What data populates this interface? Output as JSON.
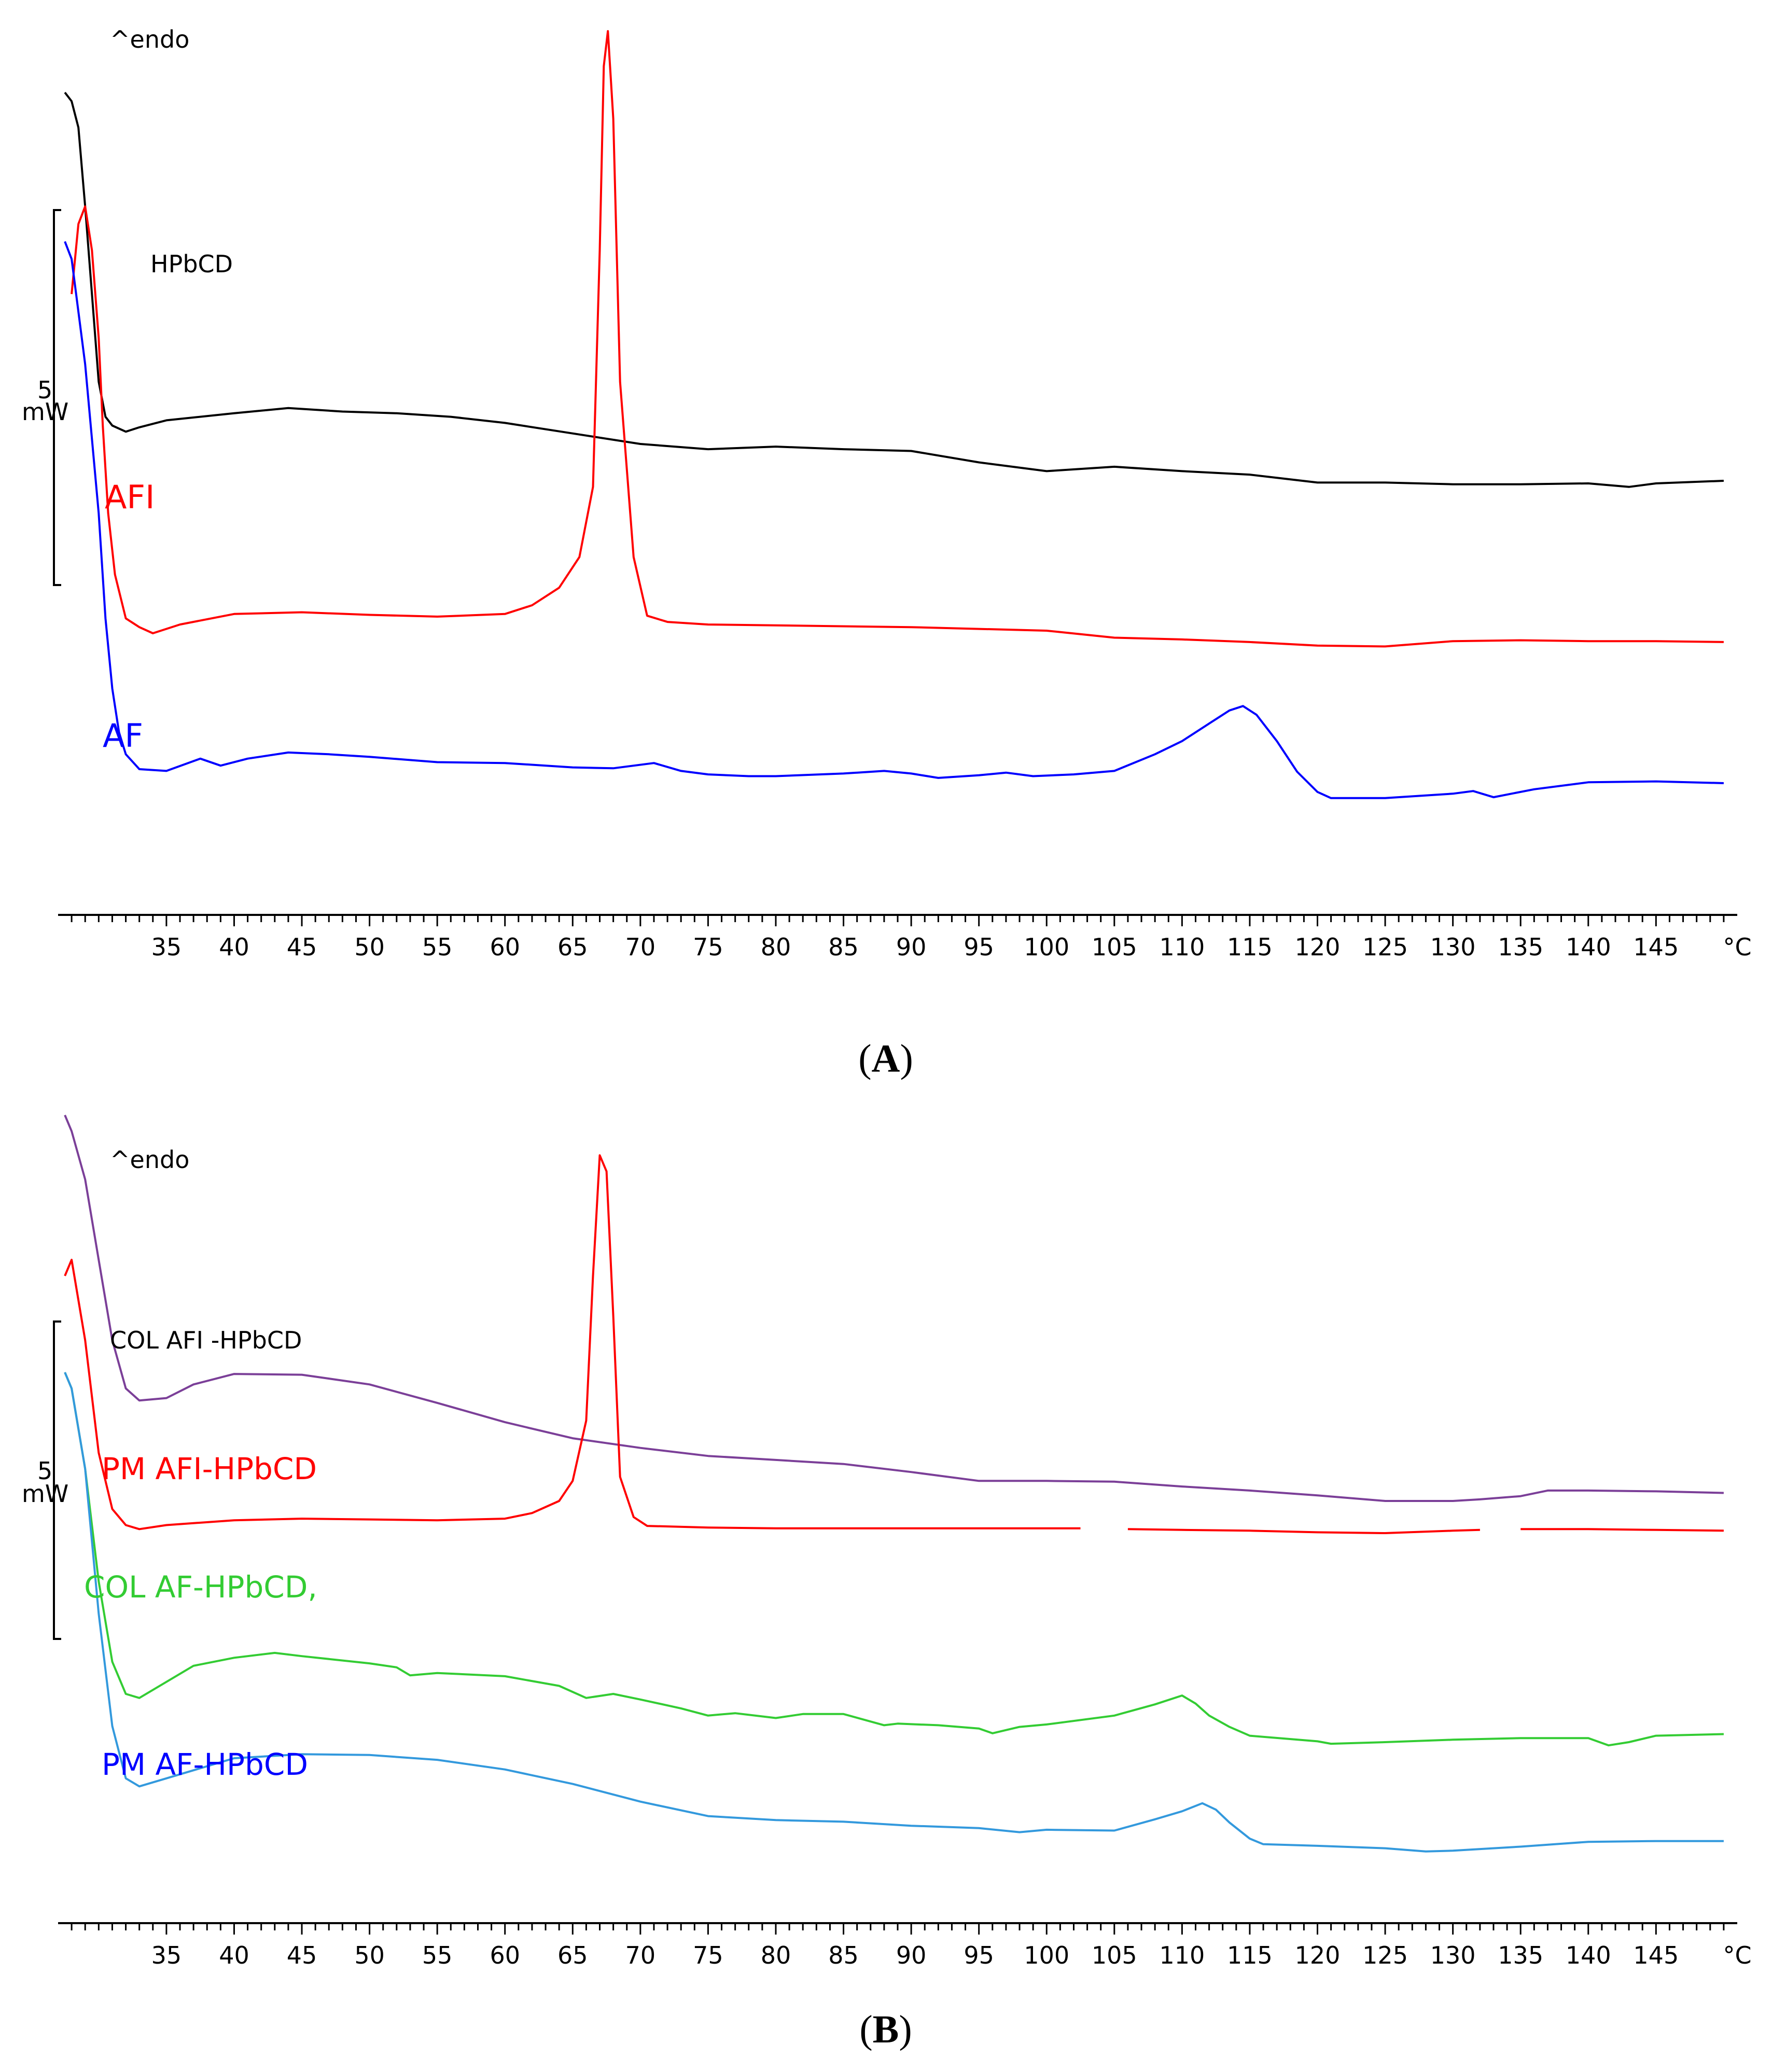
{
  "chart_data": [
    {
      "panel": "A",
      "type": "line",
      "title": "",
      "panel_label": "A",
      "panel_label_bold": "A",
      "endo_label": "^endo",
      "scale_value": "5",
      "scale_unit": "mW",
      "xlabel": "°C",
      "ylabel": "",
      "xlim": [
        27,
        151
      ],
      "ylim": [
        0,
        100
      ],
      "x_ticks": [
        35,
        40,
        45,
        50,
        55,
        60,
        65,
        70,
        75,
        80,
        85,
        90,
        95,
        100,
        105,
        110,
        115,
        120,
        125,
        130,
        135,
        140,
        145
      ],
      "series": [
        {
          "name": "HPbCD",
          "color": "#000000",
          "label_size": "small",
          "x": [
            27.5,
            28.0,
            28.5,
            29.0,
            29.5,
            30.0,
            30.5,
            31.0,
            32.0,
            33.0,
            35.0,
            40.0,
            44.0,
            48.0,
            52.0,
            56.0,
            60.0,
            65.0,
            70.0,
            75.0,
            80.0,
            85.0,
            90.0,
            95.0,
            100.0,
            105.0,
            110.0,
            115.0,
            120.0,
            125.0,
            130.0,
            135.0,
            140.0,
            143.0,
            145.0,
            150.0
          ],
          "y": [
            93,
            92,
            89,
            80,
            70,
            60,
            56,
            55,
            54.3,
            54.8,
            55.6,
            56.4,
            57.0,
            56.6,
            56.4,
            56.0,
            55.3,
            54.1,
            52.9,
            52.3,
            52.6,
            52.3,
            52.1,
            50.8,
            49.8,
            50.3,
            49.8,
            49.4,
            48.5,
            48.5,
            48.3,
            48.3,
            48.4,
            48.0,
            48.4,
            48.7
          ]
        },
        {
          "name": "AFI",
          "color": "#ff0000",
          "label_size": "large",
          "x": [
            28.0,
            28.5,
            29.0,
            29.5,
            30.0,
            30.3,
            30.7,
            31.2,
            32.0,
            33.0,
            34.0,
            36.0,
            40.0,
            45.0,
            50.0,
            55.0,
            60.0,
            62.0,
            64.0,
            65.5,
            66.5,
            67.0,
            67.3,
            67.6,
            68.0,
            68.5,
            69.5,
            70.5,
            72.0,
            75.0,
            80.0,
            90.0,
            100.0,
            105.0,
            110.0,
            115.0,
            120.0,
            125.0,
            130.0,
            135.0,
            140.0,
            145.0,
            150.0
          ],
          "y": [
            70,
            78,
            80,
            75,
            65,
            55,
            45,
            38,
            33,
            32.0,
            31.3,
            32.3,
            33.5,
            33.7,
            33.4,
            33.2,
            33.5,
            34.5,
            36.5,
            40,
            48,
            75,
            96,
            100,
            90,
            60,
            40,
            33.3,
            32.6,
            32.3,
            32.2,
            32.0,
            31.6,
            30.8,
            30.6,
            30.3,
            29.9,
            29.8,
            30.4,
            30.5,
            30.4,
            30.4,
            30.3
          ]
        },
        {
          "name": "AF",
          "color": "#0000ff",
          "label_size": "large",
          "x": [
            27.5,
            28.0,
            29.0,
            30.0,
            30.5,
            31.0,
            31.5,
            32.0,
            33.0,
            35.0,
            37.5,
            39.0,
            41.0,
            44.0,
            47.0,
            50.0,
            55.0,
            60.0,
            65.0,
            68.0,
            71.0,
            73.0,
            75.0,
            78.0,
            80.0,
            85.0,
            88.0,
            90.0,
            92.0,
            95.0,
            97.0,
            99.0,
            102.0,
            105.0,
            108.0,
            110.0,
            112.0,
            113.5,
            114.5,
            115.5,
            117.0,
            118.5,
            120.0,
            121.0,
            125.0,
            130.0,
            131.5,
            133.0,
            136.0,
            140.0,
            145.0,
            150.0
          ],
          "y": [
            76,
            74,
            62,
            45,
            33,
            25,
            20,
            17.5,
            15.8,
            15.6,
            17.0,
            16.2,
            17.0,
            17.7,
            17.5,
            17.2,
            16.6,
            16.5,
            16.0,
            15.9,
            16.5,
            15.6,
            15.2,
            15.0,
            15.0,
            15.3,
            15.6,
            15.3,
            14.8,
            15.1,
            15.4,
            15.0,
            15.2,
            15.6,
            17.5,
            19.0,
            21.0,
            22.5,
            23.0,
            22.0,
            19.0,
            15.5,
            13.2,
            12.5,
            12.5,
            13.0,
            13.3,
            12.6,
            13.5,
            14.3,
            14.4,
            14.2
          ]
        }
      ]
    },
    {
      "panel": "B",
      "type": "line",
      "title": "",
      "panel_label": "B",
      "panel_label_bold": "B",
      "endo_label": "^endo",
      "scale_value": "5",
      "scale_unit": "mW",
      "xlabel": "°C",
      "ylabel": "",
      "xlim": [
        27,
        151
      ],
      "ylim": [
        0,
        100
      ],
      "x_ticks": [
        35,
        40,
        45,
        50,
        55,
        60,
        65,
        70,
        75,
        80,
        85,
        90,
        95,
        100,
        105,
        110,
        115,
        120,
        125,
        130,
        135,
        140,
        145
      ],
      "series": [
        {
          "name": "COL AFI -HPbCD",
          "color": "#7b3f98",
          "label_color": "#000000",
          "label_size": "small",
          "x": [
            27.5,
            28.0,
            29.0,
            30.0,
            31.0,
            32.0,
            33.0,
            35.0,
            37.0,
            40.0,
            45.0,
            50.0,
            55.0,
            60.0,
            65.0,
            70.0,
            75.0,
            80.0,
            85.0,
            90.0,
            95.0,
            100.0,
            105.0,
            110.0,
            115.0,
            120.0,
            125.0,
            130.0,
            132.0,
            135.0,
            137.0,
            140.0,
            145.0,
            150.0
          ],
          "y": [
            100,
            98,
            92,
            82,
            72,
            66,
            64.5,
            64.8,
            66.5,
            67.8,
            67.7,
            66.5,
            64.2,
            61.8,
            59.8,
            58.6,
            57.6,
            57.1,
            56.6,
            55.6,
            54.5,
            54.5,
            54.4,
            53.8,
            53.3,
            52.7,
            52.0,
            52.0,
            52.2,
            52.6,
            53.3,
            53.3,
            53.2,
            53.0
          ]
        },
        {
          "name": "PM AFI-HPbCD",
          "color": "#ff0000",
          "label_size": "large",
          "x": [
            27.5,
            28.0,
            29.0,
            30.0,
            31.0,
            32.0,
            33.0,
            35.0,
            40.0,
            45.0,
            50.0,
            55.0,
            60.0,
            62.0,
            64.0,
            65.0,
            66.0,
            66.5,
            67.0,
            67.5,
            68.0,
            68.5,
            69.5,
            70.5,
            75.0,
            80.0,
            90.0,
            100.0,
            102.5,
            null,
            106.0,
            110.0,
            115.0,
            120.0,
            125.0,
            130.0,
            132.0,
            null,
            135.0,
            140.0,
            145.0,
            150.0
          ],
          "y": [
            80,
            82,
            72,
            58,
            51,
            49.0,
            48.5,
            49.0,
            49.6,
            49.8,
            49.7,
            49.6,
            49.8,
            50.5,
            52.0,
            54.5,
            62,
            80,
            95,
            93,
            75,
            55,
            50,
            48.9,
            48.7,
            48.6,
            48.6,
            48.6,
            48.6,
            null,
            48.5,
            48.4,
            48.3,
            48.1,
            48.0,
            48.3,
            48.4,
            null,
            48.5,
            48.5,
            48.4,
            48.3
          ]
        },
        {
          "name": "COL AF-HPbCD,",
          "color": "#33cc33",
          "label_size": "large",
          "x": [
            27.5,
            28.0,
            29.0,
            30.0,
            31.0,
            32.0,
            33.0,
            35.0,
            37.0,
            40.0,
            43.0,
            45.0,
            50.0,
            52.0,
            53.0,
            55.0,
            60.0,
            64.0,
            66.0,
            68.0,
            70.0,
            73.0,
            75.0,
            77.0,
            80.0,
            82.0,
            85.0,
            88.0,
            89.0,
            92.0,
            95.0,
            96.0,
            98.0,
            100.0,
            105.0,
            108.0,
            110.0,
            111.0,
            112.0,
            113.5,
            115.0,
            120.0,
            121.0,
            125.0,
            130.0,
            135.0,
            140.0,
            141.5,
            143.0,
            145.0,
            150.0
          ],
          "y": [
            68,
            66,
            56,
            42,
            32,
            28,
            27.5,
            29.5,
            31.5,
            32.5,
            33.1,
            32.7,
            31.8,
            31.3,
            30.3,
            30.6,
            30.2,
            29.0,
            27.5,
            28.0,
            27.3,
            26.2,
            25.3,
            25.6,
            25.0,
            25.5,
            25.5,
            24.1,
            24.3,
            24.1,
            23.7,
            23.1,
            23.9,
            24.2,
            25.3,
            26.7,
            27.8,
            26.8,
            25.3,
            23.9,
            22.8,
            22.1,
            21.8,
            22.0,
            22.3,
            22.5,
            22.5,
            21.6,
            22.0,
            22.8,
            23.0
          ]
        },
        {
          "name": "PM AF-HPbCD",
          "color": "#3399dd",
          "label_color": "#0000ff",
          "label_size": "large",
          "x": [
            27.5,
            28.0,
            29.0,
            30.0,
            31.0,
            32.0,
            33.0,
            35.0,
            40.0,
            45.0,
            50.0,
            55.0,
            60.0,
            65.0,
            70.0,
            75.0,
            80.0,
            85.0,
            90.0,
            95.0,
            98.0,
            100.0,
            105.0,
            108.0,
            110.0,
            111.5,
            112.5,
            113.5,
            115.0,
            116.0,
            120.0,
            125.0,
            128.0,
            130.0,
            135.0,
            140.0,
            145.0,
            150.0
          ],
          "y": [
            68,
            66,
            56,
            38,
            24,
            17.5,
            16.5,
            17.5,
            20.0,
            20.5,
            20.4,
            19.8,
            18.6,
            16.8,
            14.6,
            12.8,
            12.3,
            12.1,
            11.6,
            11.3,
            10.8,
            11.1,
            11.0,
            12.4,
            13.4,
            14.4,
            13.6,
            12.0,
            10.0,
            9.3,
            9.1,
            8.8,
            8.4,
            8.5,
            9.0,
            9.6,
            9.7,
            9.7
          ]
        }
      ]
    }
  ]
}
